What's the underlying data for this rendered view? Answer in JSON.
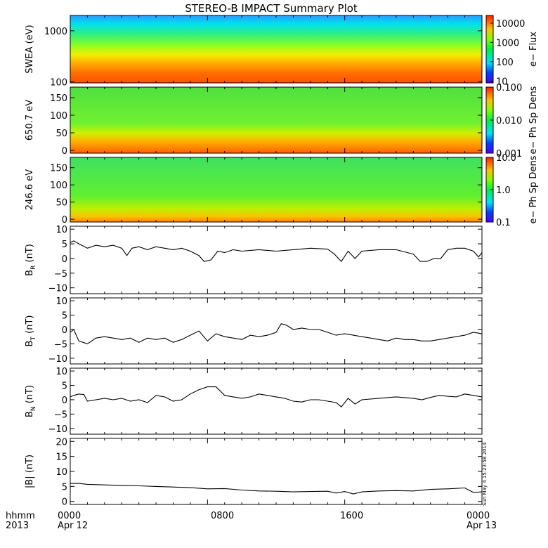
{
  "title": "STEREO-B IMPACT Summary Plot",
  "timestamp": "Sun May  4 15:23:58 2014",
  "x_axis": {
    "row1": [
      "hhmm",
      "0000",
      "0800",
      "1600",
      "0000"
    ],
    "row2": [
      "2013",
      "Apr 12",
      "",
      "",
      "Apr 13"
    ],
    "tick_hours": [
      0,
      8,
      16,
      24
    ]
  },
  "colors": {
    "line": "#000000",
    "frame": "#000000",
    "background": "#ffffff"
  },
  "chart_data": [
    {
      "type": "heatmap",
      "ylabel": "SWEA (eV)",
      "ylog": true,
      "ylim": [
        95,
        2000
      ],
      "yticks": [
        {
          "v": 100,
          "l": "100"
        },
        {
          "v": 1000,
          "l": "1000"
        }
      ],
      "cbar": {
        "label": "e− Flux",
        "log": true,
        "range": [
          8,
          25000
        ],
        "ticks": [
          {
            "v": 10,
            "l": "10"
          },
          {
            "v": 100,
            "l": "100"
          },
          {
            "v": 1000,
            "l": "1000"
          },
          {
            "v": 10000,
            "l": "10000"
          }
        ]
      }
    },
    {
      "type": "heatmap",
      "ylabel": "650.7 eV",
      "ylim": [
        -8,
        180
      ],
      "yticks": [
        {
          "v": 0,
          "l": "0"
        },
        {
          "v": 50,
          "l": "50"
        },
        {
          "v": 100,
          "l": "100"
        },
        {
          "v": 150,
          "l": "150"
        }
      ],
      "cbar": {
        "label": "e− Ph Sp Dens",
        "log": true,
        "range": [
          0.001,
          0.1
        ],
        "ticks": [
          {
            "v": 0.001,
            "l": "0.001"
          },
          {
            "v": 0.01,
            "l": "0.010"
          },
          {
            "v": 0.1,
            "l": "0.100"
          }
        ]
      }
    },
    {
      "type": "heatmap",
      "ylabel": "246.6 eV",
      "ylim": [
        -8,
        180
      ],
      "yticks": [
        {
          "v": 0,
          "l": "0"
        },
        {
          "v": 50,
          "l": "50"
        },
        {
          "v": 100,
          "l": "100"
        },
        {
          "v": 150,
          "l": "150"
        }
      ],
      "cbar": {
        "label": "e− Ph Sp Dens",
        "log": true,
        "range": [
          0.1,
          10
        ],
        "ticks": [
          {
            "v": 0.1,
            "l": "0.1"
          },
          {
            "v": 1,
            "l": "1.0"
          },
          {
            "v": 10,
            "l": "10.0"
          }
        ]
      }
    },
    {
      "type": "line",
      "ylabel": "B",
      "ysub": "R",
      "yunit": "(nT)",
      "ylim": [
        -12,
        11
      ],
      "yticks": [
        {
          "v": -10,
          "l": "−10"
        },
        {
          "v": -5,
          "l": "−5"
        },
        {
          "v": 0,
          "l": "0"
        },
        {
          "v": 5,
          "l": "5"
        },
        {
          "v": 10,
          "l": "10"
        }
      ],
      "x": [
        0,
        0.2,
        0.5,
        1,
        1.5,
        2,
        2.5,
        3,
        3.3,
        3.6,
        4,
        4.5,
        5,
        5.5,
        6,
        6.5,
        7,
        7.5,
        7.8,
        8.2,
        8.6,
        9,
        9.5,
        10,
        11,
        12,
        13,
        14,
        15,
        15.4,
        15.8,
        16.2,
        16.6,
        17,
        18,
        19,
        20,
        20.4,
        20.8,
        21.2,
        21.6,
        22,
        22.5,
        23,
        23.5,
        23.8,
        24
      ],
      "y": [
        5.5,
        6,
        5,
        3.5,
        4.5,
        4,
        4.5,
        3.5,
        1,
        3.5,
        4,
        3,
        4,
        3.5,
        3,
        3.5,
        2.5,
        1,
        -1,
        -0.5,
        2.5,
        2,
        3,
        2.5,
        3,
        2.5,
        3,
        3.5,
        3.2,
        1.5,
        -1,
        2.5,
        0,
        2.5,
        3,
        3,
        1.5,
        -1,
        -1,
        0,
        0,
        3,
        3.5,
        3.5,
        2.5,
        0.5,
        2
      ]
    },
    {
      "type": "line",
      "ylabel": "B",
      "ysub": "T",
      "yunit": "(nT)",
      "ylim": [
        -12,
        11
      ],
      "yticks": [
        {
          "v": -10,
          "l": "−10"
        },
        {
          "v": -5,
          "l": "−5"
        },
        {
          "v": 0,
          "l": "0"
        },
        {
          "v": 5,
          "l": "5"
        },
        {
          "v": 10,
          "l": "10"
        }
      ],
      "x": [
        0,
        0.2,
        0.5,
        1,
        1.5,
        2,
        2.5,
        3,
        3.5,
        4,
        4.5,
        5,
        5.5,
        6,
        6.5,
        7,
        7.5,
        8,
        8.5,
        9,
        9.5,
        10,
        10.5,
        11,
        11.5,
        12,
        12.3,
        12.6,
        13,
        13.5,
        14,
        14.5,
        15,
        15.5,
        16,
        16.5,
        17,
        17.5,
        18,
        18.5,
        19,
        19.5,
        20,
        20.5,
        21,
        21.5,
        22,
        22.5,
        23,
        23.5,
        24
      ],
      "y": [
        -1,
        0,
        -4,
        -5,
        -3,
        -2.5,
        -3,
        -3.5,
        -3,
        -4.5,
        -3,
        -3.5,
        -3,
        -4.5,
        -3.5,
        -2,
        -0.5,
        -4,
        -1.5,
        -2.5,
        -3,
        -3.5,
        -2,
        -2.5,
        -2,
        -1,
        2,
        1.5,
        0,
        0.5,
        0,
        0,
        -1,
        -2,
        -1.5,
        -2,
        -2.5,
        -3,
        -3.5,
        -4,
        -3,
        -3.5,
        -3.5,
        -4,
        -4,
        -3.5,
        -3,
        -2.5,
        -2,
        -1,
        -1.5
      ]
    },
    {
      "type": "line",
      "ylabel": "B",
      "ysub": "N",
      "yunit": "(nT)",
      "ylim": [
        -12,
        11
      ],
      "yticks": [
        {
          "v": -10,
          "l": "−10"
        },
        {
          "v": -5,
          "l": "−5"
        },
        {
          "v": 0,
          "l": "0"
        },
        {
          "v": 5,
          "l": "5"
        },
        {
          "v": 10,
          "l": "10"
        }
      ],
      "x": [
        0,
        0.2,
        0.5,
        0.8,
        1,
        1.5,
        2,
        2.5,
        3,
        3.5,
        4,
        4.5,
        5,
        5.5,
        6,
        6.5,
        7,
        7.5,
        8,
        8.5,
        9,
        9.5,
        10,
        10.5,
        11,
        11.5,
        12,
        12.5,
        13,
        13.5,
        14,
        14.5,
        15,
        15.5,
        15.8,
        16.2,
        16.6,
        17,
        18,
        19,
        20,
        20.5,
        21,
        21.5,
        22,
        22.5,
        23,
        23.5,
        24
      ],
      "y": [
        1,
        1.5,
        2,
        1.8,
        -0.5,
        0,
        0.5,
        0,
        0.5,
        -0.5,
        0,
        -1,
        1.5,
        1,
        -0.5,
        0,
        2,
        3.5,
        4.5,
        4.5,
        1.5,
        1,
        0.5,
        1,
        2,
        1.5,
        1,
        0.5,
        -0.5,
        -0.8,
        0,
        0,
        -0.5,
        -1,
        -2.5,
        0.5,
        -1.5,
        0,
        0.5,
        1,
        0.5,
        0,
        0.8,
        1.5,
        1.2,
        1,
        2,
        1.5,
        1
      ]
    },
    {
      "type": "line",
      "ylabel": "|B|",
      "yunit": "(nT)",
      "ylim": [
        -1,
        21
      ],
      "yticks": [
        {
          "v": 0,
          "l": "0"
        },
        {
          "v": 5,
          "l": "5"
        },
        {
          "v": 10,
          "l": "10"
        },
        {
          "v": 15,
          "l": "15"
        },
        {
          "v": 20,
          "l": "20"
        }
      ],
      "x": [
        0,
        0.5,
        1,
        2,
        3,
        4,
        5,
        6,
        7,
        8,
        9,
        10,
        11,
        12,
        13,
        14,
        15,
        15.5,
        16,
        16.5,
        17,
        18,
        19,
        20,
        21,
        22,
        23,
        23.5,
        24
      ],
      "y": [
        6,
        6,
        5.7,
        5.5,
        5.3,
        5.2,
        5,
        4.8,
        4.6,
        4.2,
        4.3,
        3.8,
        3.5,
        3.4,
        3.2,
        3.3,
        3.4,
        2.8,
        3.3,
        2.5,
        3.2,
        3.5,
        3.6,
        3.5,
        4,
        4.2,
        4.5,
        3,
        3.2
      ]
    }
  ]
}
